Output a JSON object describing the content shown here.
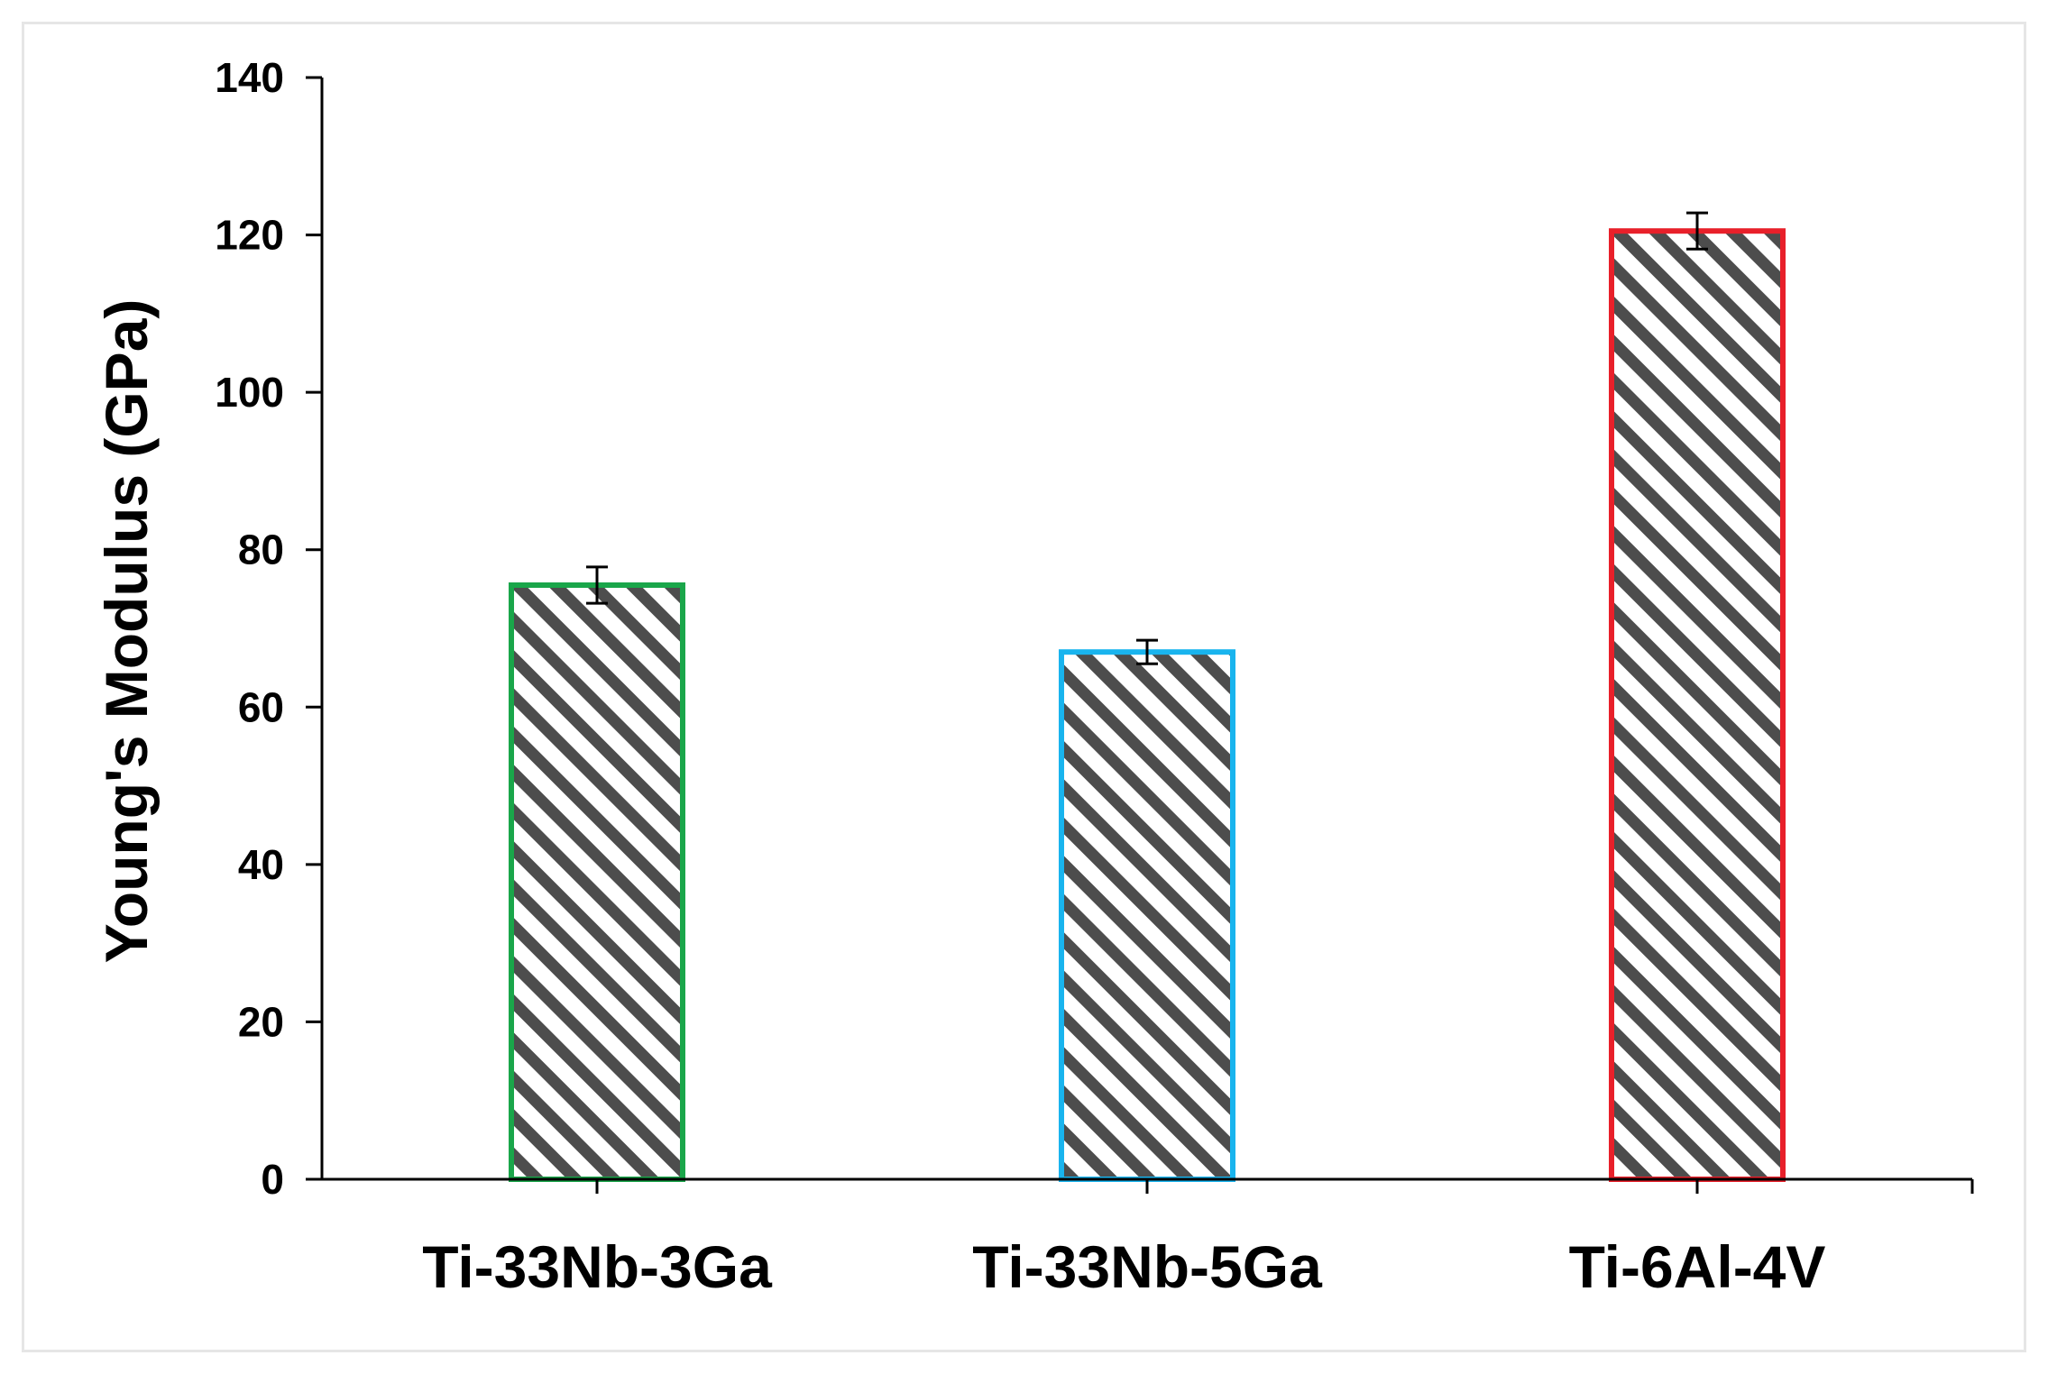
{
  "chart_data": {
    "type": "bar",
    "categories": [
      "Ti-33Nb-3Ga",
      "Ti-33Nb-5Ga",
      "Ti-6Al-4V"
    ],
    "values": [
      75.5,
      67.0,
      120.5
    ],
    "errors": [
      2.3,
      1.5,
      2.3
    ],
    "bar_outline_colors": [
      "#1aa64a",
      "#19b4ee",
      "#e8202a"
    ],
    "bar_fill": "hatched diagonal, dark gray #4d4d4d on white",
    "title": "",
    "xlabel": "",
    "ylabel": "Young's Modulus (GPa)",
    "ylim": [
      0,
      140
    ],
    "yticks": [
      0,
      20,
      40,
      60,
      80,
      100,
      120,
      140
    ],
    "grid": false,
    "legend": "none"
  }
}
